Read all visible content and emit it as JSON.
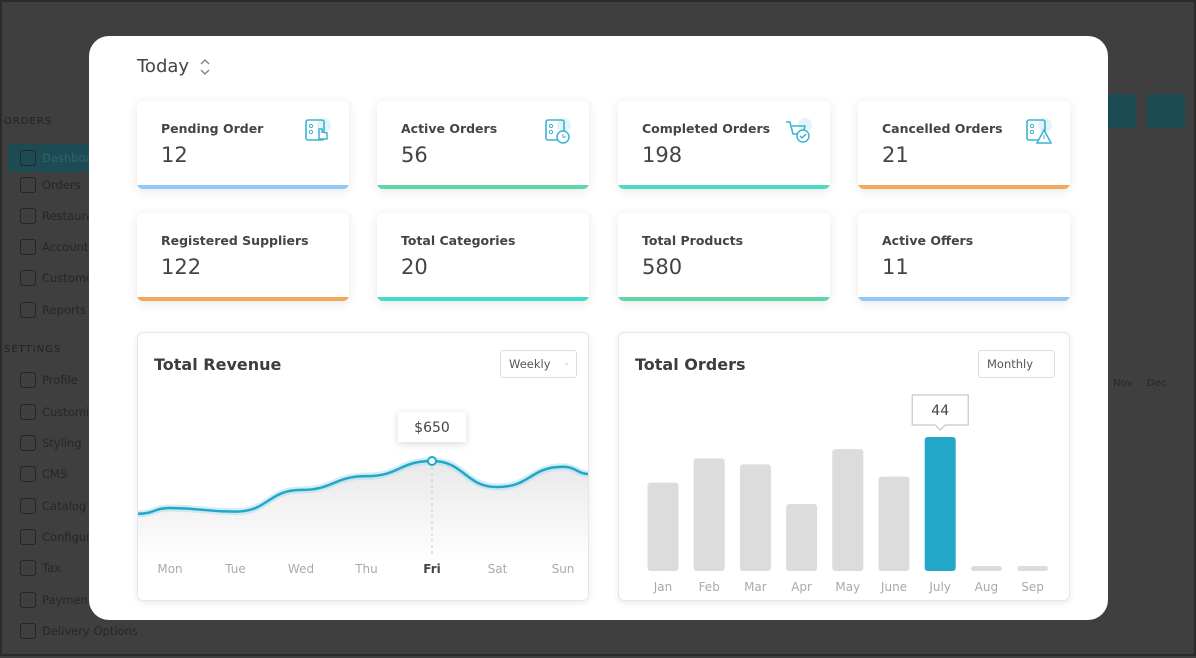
{
  "background": {
    "sections": [
      {
        "label": "ORDERS"
      },
      {
        "label": "SETTINGS"
      }
    ],
    "items": [
      "Dashboard",
      "Orders",
      "Restaurants",
      "Accounting",
      "Customers",
      "Reports",
      "Profile",
      "Customize",
      "Styling",
      "CMS",
      "Catalog",
      "Configure",
      "Tax",
      "Payments",
      "Delivery Options"
    ],
    "right_labels": [
      "Nov",
      "Dec"
    ]
  },
  "modal": {
    "period": "Today",
    "period_icon": "sort-icon",
    "stats": [
      {
        "label": "Pending Order",
        "value": "12",
        "color": "#8ec8f8",
        "icon": "tap-order-icon"
      },
      {
        "label": "Active Orders",
        "value": "56",
        "color": "#5ed6a5",
        "icon": "clock-order-icon"
      },
      {
        "label": "Completed Orders",
        "value": "198",
        "color": "#4fd8c4",
        "icon": "cart-check-icon"
      },
      {
        "label": "Cancelled Orders",
        "value": "21",
        "color": "#f2a85a",
        "icon": "warning-order-icon"
      },
      {
        "label": "Registered Suppliers",
        "value": "122",
        "color": "#f2a85a"
      },
      {
        "label": "Total Categories",
        "value": "20",
        "color": "#3fdcc8"
      },
      {
        "label": "Total Products",
        "value": "580",
        "color": "#5ed6a5"
      },
      {
        "label": "Active Offers",
        "value": "11",
        "color": "#8ec8f8"
      }
    ],
    "accent": "#22a7c9"
  },
  "chart_data": [
    {
      "type": "line",
      "title": "Total Revenue",
      "period": "Weekly",
      "categories": [
        "Mon",
        "Tue",
        "Wed",
        "Thu",
        "Fri",
        "Sat",
        "Sun"
      ],
      "values": [
        325,
        300,
        450,
        545,
        650,
        470,
        610
      ],
      "highlight": {
        "category": "Fri",
        "label": "$650"
      }
    },
    {
      "type": "bar",
      "title": "Total Orders",
      "period": "Monthly",
      "categories": [
        "Jan",
        "Feb",
        "Mar",
        "Apr",
        "May",
        "June",
        "July",
        "Aug",
        "Sep"
      ],
      "values": [
        29,
        37,
        35,
        22,
        40,
        31,
        44,
        0,
        0
      ],
      "highlight": {
        "category": "July",
        "label": "44"
      }
    }
  ]
}
